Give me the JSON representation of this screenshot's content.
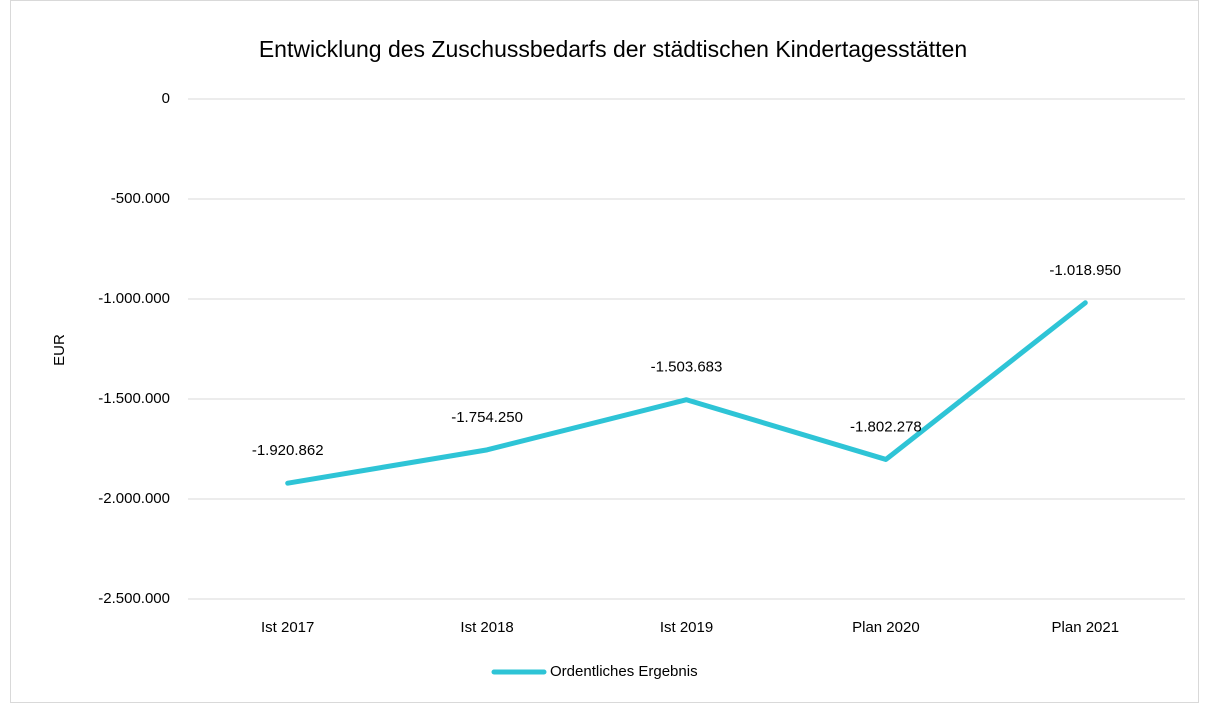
{
  "chart_data": {
    "type": "line",
    "title": "Entwicklung des Zuschussbedarfs der städtischen Kindertagesstätten",
    "y_label": "EUR",
    "categories": [
      "Ist 2017",
      "Ist 2018",
      "Ist 2019",
      "Plan 2020",
      "Plan 2021"
    ],
    "series": [
      {
        "name": "Ordentliches Ergebnis",
        "color": "#2ec4d6",
        "values": [
          -1920862,
          -1754250,
          -1503683,
          -1802278,
          -1018950
        ],
        "value_labels": [
          "-1.920.862",
          "-1.754.250",
          "-1.503.683",
          "-1.802.278",
          "-1.018.950"
        ]
      }
    ],
    "ylim": [
      -2500000,
      0
    ],
    "yticks": [
      {
        "value": -2500000,
        "label": "-2.500.000"
      },
      {
        "value": -2000000,
        "label": "-2.000.000"
      },
      {
        "value": -1500000,
        "label": "-1.500.000"
      },
      {
        "value": -1000000,
        "label": "-1.000.000"
      },
      {
        "value": -500000,
        "label": "-500.000"
      },
      0
    ],
    "grid": true,
    "legend": "bottom"
  }
}
